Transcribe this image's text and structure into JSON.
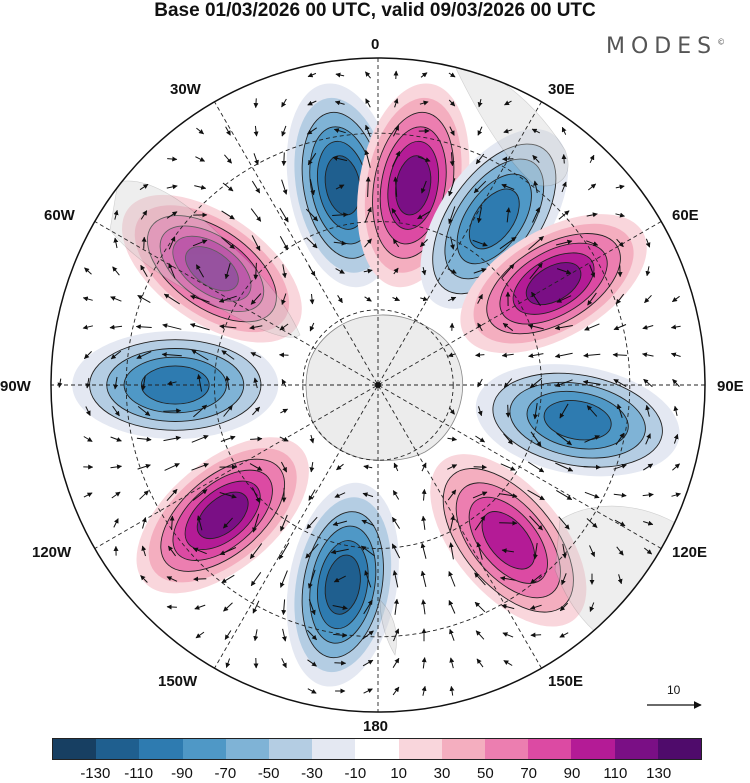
{
  "title": "Base 01/03/2026 00 UTC, valid 09/03/2026 00 UTC",
  "brand": "MODES",
  "brand_mark": "©",
  "longitude_labels": {
    "lon_0": "0",
    "lon_30e": "30E",
    "lon_60e": "60E",
    "lon_90e": "90E",
    "lon_120e": "120E",
    "lon_150e": "150E",
    "lon_180": "180",
    "lon_150w": "150W",
    "lon_120w": "120W",
    "lon_90w": "90W",
    "lon_60w": "60W",
    "lon_30w": "30W"
  },
  "reference_vector": {
    "label": "10",
    "value": 10
  },
  "colorbar": {
    "tick_labels": [
      "-130",
      "-110",
      "-90",
      "-70",
      "-50",
      "-30",
      "-10",
      "10",
      "30",
      "50",
      "70",
      "90",
      "110",
      "130"
    ],
    "colors": [
      "#173f62",
      "#1f5f8f",
      "#2e7bb0",
      "#4f98c6",
      "#7fb3d6",
      "#b4cde3",
      "#e4e8f2",
      "#ffffff",
      "#f9d6dc",
      "#f4aebf",
      "#ec7eb0",
      "#dc4aa3",
      "#b41b96",
      "#7a0f85",
      "#4f0b6b"
    ]
  },
  "chart_data": {
    "type": "polar-stereographic-map",
    "projection": "south-polar-stereographic",
    "field": "anomaly with wind vectors",
    "base_time": "01/03/2026 00 UTC",
    "valid_time": "09/03/2026 00 UTC",
    "levels": [
      -130,
      -110,
      -90,
      -70,
      -50,
      -30,
      -10,
      10,
      30,
      50,
      70,
      90,
      110,
      130
    ],
    "anomaly_centers": [
      {
        "longitude": "~10W",
        "sign": "negative",
        "approx_value": -110
      },
      {
        "longitude": "~10E",
        "sign": "positive",
        "approx_value": 110
      },
      {
        "longitude": "~35E",
        "sign": "negative",
        "approx_value": -90
      },
      {
        "longitude": "~60E",
        "sign": "positive",
        "approx_value": 110
      },
      {
        "longitude": "~100E",
        "sign": "negative",
        "approx_value": -90
      },
      {
        "longitude": "~140E",
        "sign": "positive",
        "approx_value": 90
      },
      {
        "longitude": "~170W",
        "sign": "negative",
        "approx_value": -110
      },
      {
        "longitude": "~130W",
        "sign": "positive",
        "approx_value": 110
      },
      {
        "longitude": "~90W",
        "sign": "negative",
        "approx_value": -90
      },
      {
        "longitude": "~55W",
        "sign": "positive",
        "approx_value": 110
      }
    ]
  }
}
